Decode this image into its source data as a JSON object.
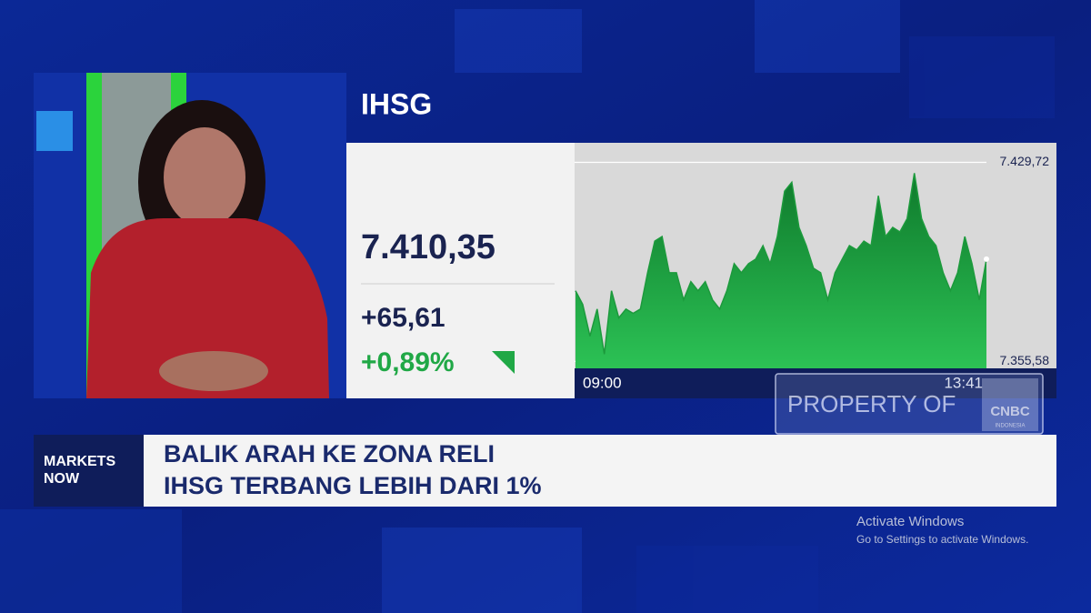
{
  "chart_data": {
    "type": "area",
    "title": "IHSG",
    "categories": [
      "09:00",
      null,
      null,
      null,
      null,
      null,
      null,
      null,
      null,
      null,
      null,
      null,
      null,
      null,
      null,
      null,
      null,
      null,
      null,
      null,
      null,
      null,
      null,
      null,
      null,
      null,
      null,
      null,
      null,
      null,
      null,
      null,
      null,
      null,
      null,
      null,
      null,
      null,
      null,
      null,
      null,
      null,
      null,
      null,
      null,
      null,
      null,
      null,
      null,
      null,
      null,
      null,
      null,
      null,
      null,
      null,
      null,
      "13:41"
    ],
    "values": [
      7381.9,
      7376.8,
      7365.0,
      7375.1,
      7358.3,
      7381.9,
      7371.8,
      7375.1,
      7373.5,
      7375.1,
      7388.6,
      7400.4,
      7402.1,
      7388.6,
      7388.6,
      7378.5,
      7385.3,
      7381.9,
      7385.3,
      7378.5,
      7375.1,
      7381.9,
      7392.0,
      7388.6,
      7392.0,
      7393.7,
      7398.7,
      7392.0,
      7402.1,
      7419.0,
      7422.3,
      7405.5,
      7398.7,
      7390.3,
      7388.6,
      7378.5,
      7388.6,
      7393.7,
      7398.7,
      7397.1,
      7400.4,
      7398.7,
      7417.3,
      7402.1,
      7405.5,
      7403.8,
      7408.8,
      7425.7,
      7408.8,
      7402.1,
      7398.7,
      7388.6,
      7381.9,
      7388.6,
      7402.1,
      7392.0,
      7378.5,
      7393.7
    ],
    "color": "#1c9a3c",
    "ylim": [
      7353,
      7436
    ],
    "yticks": [
      {
        "value": 7429.72,
        "label": "7.429,72"
      },
      {
        "value": 7355.58,
        "label": "7.355,58"
      }
    ],
    "grid": true
  },
  "quote": {
    "last": "7.410,35",
    "change": "+65,61",
    "change_pct": "+0,89%"
  },
  "watermark": {
    "text": "PROPERTY OF",
    "logo": "CNBC",
    "logo_sub": "INDONESIA"
  },
  "lower_third": {
    "tag_lines": [
      "MARKETS",
      "NOW"
    ],
    "headline_lines": [
      "BALIK ARAH KE ZONA RELI",
      "IHSG TERBANG LEBIH DARI 1%"
    ]
  },
  "os_notice": {
    "title": "Activate Windows",
    "subtitle": "Go to Settings to activate Windows."
  }
}
